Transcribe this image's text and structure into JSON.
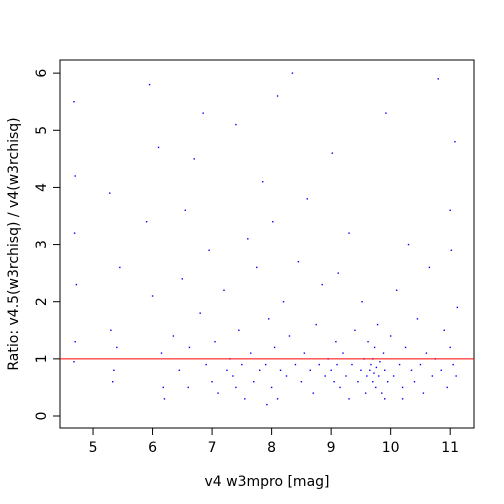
{
  "chart_data": {
    "type": "scatter",
    "x_label": "v4 w3mpro [mag]",
    "y_label": "Ratio: v4.5(w3rchisq) / v4(w3rchisq)",
    "xlim": [
      4.445,
      11.4
    ],
    "ylim": [
      -0.21,
      6.23
    ],
    "xticks": [
      5,
      6,
      7,
      8,
      9,
      10,
      11
    ],
    "yticks": [
      0,
      1,
      2,
      3,
      4,
      5,
      6
    ],
    "color": "#0000ff",
    "hline": 1,
    "hline_color": "#ff0000",
    "x": [
      4.68,
      4.7,
      4.69,
      4.72,
      4.7,
      4.68,
      5.28,
      5.3,
      5.35,
      5.4,
      5.45,
      5.33,
      5.95,
      5.9,
      6.0,
      6.15,
      6.18,
      6.2,
      6.1,
      6.35,
      6.45,
      6.5,
      6.55,
      6.6,
      6.62,
      6.7,
      6.8,
      6.85,
      6.9,
      6.95,
      7.0,
      7.05,
      7.1,
      7.2,
      7.25,
      7.3,
      7.35,
      7.4,
      7.45,
      7.5,
      7.55,
      7.6,
      7.65,
      7.7,
      7.75,
      7.8,
      7.85,
      7.9,
      7.92,
      7.95,
      8.0,
      8.02,
      8.05,
      8.1,
      8.15,
      8.2,
      8.25,
      8.3,
      8.35,
      8.4,
      8.45,
      8.5,
      8.55,
      8.6,
      8.65,
      8.7,
      8.75,
      8.8,
      8.85,
      8.9,
      8.95,
      9.0,
      9.02,
      9.05,
      9.08,
      9.1,
      9.12,
      9.15,
      9.2,
      9.25,
      9.3,
      9.35,
      9.4,
      9.45,
      9.5,
      9.52,
      9.55,
      9.58,
      9.6,
      9.62,
      9.65,
      9.67,
      9.7,
      9.7,
      9.72,
      9.73,
      9.75,
      9.76,
      9.78,
      9.8,
      9.82,
      9.85,
      9.88,
      9.9,
      9.92,
      9.95,
      10.0,
      10.05,
      10.1,
      10.15,
      10.2,
      10.25,
      10.3,
      10.35,
      10.4,
      10.45,
      10.5,
      10.55,
      10.6,
      10.65,
      10.7,
      10.75,
      10.8,
      10.85,
      10.9,
      10.95,
      11.0,
      11.02,
      11.05,
      11.08,
      11.1,
      11.12,
      11.0,
      9.3,
      8.1,
      7.4,
      9.9,
      10.2
    ],
    "y": [
      5.5,
      4.2,
      3.2,
      2.3,
      1.3,
      0.95,
      3.9,
      1.5,
      0.8,
      1.2,
      2.6,
      0.6,
      5.8,
      3.4,
      2.1,
      1.1,
      0.5,
      0.3,
      4.7,
      1.4,
      0.8,
      2.4,
      3.6,
      0.5,
      1.2,
      4.5,
      1.8,
      5.3,
      0.9,
      2.9,
      0.6,
      1.3,
      0.4,
      2.2,
      0.8,
      1.0,
      0.7,
      5.1,
      1.5,
      0.9,
      0.3,
      3.1,
      1.1,
      0.6,
      2.6,
      0.8,
      4.1,
      0.9,
      0.2,
      1.7,
      0.5,
      3.4,
      1.2,
      5.6,
      0.8,
      2.0,
      0.7,
      1.4,
      6.0,
      0.9,
      2.7,
      0.6,
      1.1,
      3.8,
      0.8,
      0.4,
      1.6,
      0.9,
      2.3,
      0.7,
      1.0,
      0.8,
      4.6,
      0.6,
      1.3,
      0.9,
      2.5,
      0.5,
      1.1,
      0.7,
      3.2,
      0.9,
      1.5,
      0.6,
      0.8,
      2.0,
      1.0,
      0.4,
      0.7,
      1.3,
      0.8,
      0.9,
      0.6,
      1.0,
      0.75,
      1.2,
      0.5,
      0.85,
      1.6,
      0.7,
      0.95,
      0.4,
      1.1,
      0.8,
      5.3,
      0.6,
      1.4,
      0.7,
      2.2,
      0.9,
      0.5,
      1.2,
      3.0,
      0.8,
      0.6,
      1.7,
      0.9,
      0.4,
      1.1,
      2.6,
      0.7,
      1.0,
      5.9,
      0.8,
      1.5,
      0.5,
      1.2,
      2.9,
      0.9,
      4.8,
      0.7,
      1.9,
      3.6,
      0.3,
      0.3,
      0.5,
      0.3,
      0.3
    ]
  }
}
